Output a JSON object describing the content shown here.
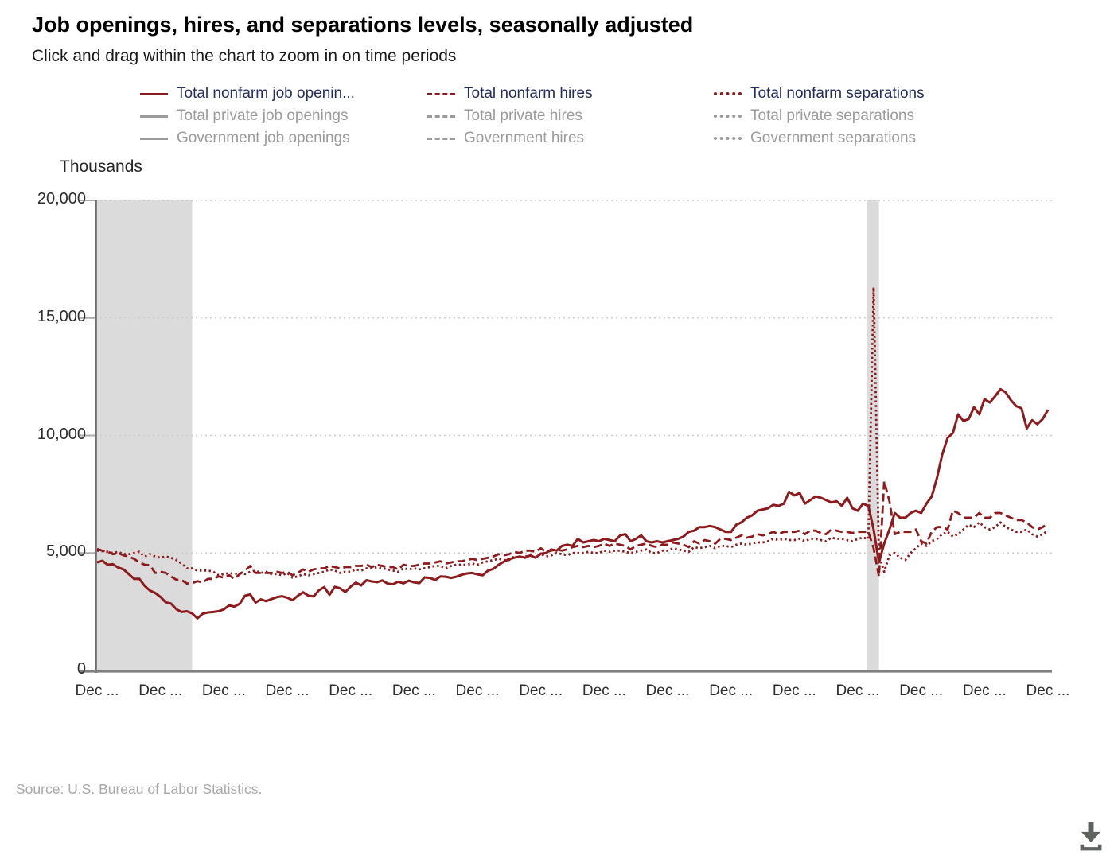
{
  "header": {
    "title": "Job openings, hires, and separations levels, seasonally adjusted",
    "subtitle": "Click and drag within the chart to zoom in on time periods"
  },
  "legend": {
    "items": [
      {
        "label": "Total nonfarm job openin...",
        "style": "solid",
        "active": true
      },
      {
        "label": "Total private job openings",
        "style": "solid",
        "active": false
      },
      {
        "label": "Government job openings",
        "style": "solid",
        "active": false
      },
      {
        "label": "Total nonfarm hires",
        "style": "dashed",
        "active": true
      },
      {
        "label": "Total private hires",
        "style": "dashed",
        "active": false
      },
      {
        "label": "Government hires",
        "style": "dashed",
        "active": false
      },
      {
        "label": "Total nonfarm separations",
        "style": "dotted",
        "active": true
      },
      {
        "label": "Total private separations",
        "style": "dotted",
        "active": false
      },
      {
        "label": "Government separations",
        "style": "dotted",
        "active": false
      }
    ]
  },
  "chart_data": {
    "type": "line",
    "title": "Job openings, hires, and separations levels, seasonally adjusted",
    "y_axis_title": "Thousands",
    "ylim": [
      0,
      20000
    ],
    "grid": "dotted-horizontal",
    "y_ticks": {
      "labels": [
        "0",
        "5,000",
        "10,000",
        "15,000",
        "20,000"
      ],
      "values": [
        0,
        5000,
        10000,
        15000,
        20000
      ]
    },
    "x_tick_labels": [
      "Dec ...",
      "Dec ...",
      "Dec ...",
      "Dec ...",
      "Dec ...",
      "Dec ...",
      "Dec ...",
      "Dec ...",
      "Dec ...",
      "Dec ...",
      "Dec ...",
      "Dec ...",
      "Dec ...",
      "Dec ...",
      "Dec ...",
      "Dec ..."
    ],
    "x_tick_point_indices": [
      0,
      12,
      24,
      36,
      48,
      60,
      72,
      84,
      96,
      108,
      120,
      132,
      144,
      156,
      168,
      180
    ],
    "x_unit": "monthly",
    "recession_bands": [
      {
        "from_index": 0,
        "to_index": 18
      },
      {
        "from_index": 146,
        "to_index": 148
      }
    ],
    "colors": {
      "series": "#8D1A1D",
      "active_label": "#252D62",
      "muted": "#9B9B9B",
      "grid": "#CCCCCC",
      "band": "#DBDBDB",
      "axis": "#7F7F7F"
    },
    "series": [
      {
        "name": "Total nonfarm job openings",
        "style": "solid",
        "values": [
          4600,
          4670,
          4500,
          4520,
          4380,
          4300,
          4100,
          3900,
          3900,
          3600,
          3400,
          3300,
          3130,
          2900,
          2850,
          2610,
          2490,
          2520,
          2430,
          2220,
          2420,
          2470,
          2490,
          2520,
          2600,
          2770,
          2720,
          2840,
          3180,
          3240,
          2890,
          3030,
          2950,
          3040,
          3120,
          3160,
          3100,
          2990,
          3180,
          3330,
          3180,
          3150,
          3410,
          3550,
          3220,
          3560,
          3500,
          3340,
          3570,
          3740,
          3620,
          3840,
          3790,
          3760,
          3830,
          3700,
          3670,
          3780,
          3710,
          3820,
          3750,
          3720,
          3960,
          3940,
          3850,
          4000,
          3990,
          3940,
          3990,
          4070,
          4130,
          4150,
          4090,
          4050,
          4250,
          4320,
          4500,
          4630,
          4740,
          4800,
          4850,
          4800,
          4900,
          4800,
          4970,
          5000,
          5150,
          5100,
          5300,
          5350,
          5300,
          5600,
          5450,
          5500,
          5550,
          5500,
          5600,
          5550,
          5500,
          5750,
          5800,
          5500,
          5600,
          5750,
          5500,
          5450,
          5500,
          5450,
          5500,
          5550,
          5600,
          5700,
          5900,
          5950,
          6100,
          6100,
          6150,
          6100,
          6000,
          5900,
          5900,
          6200,
          6300,
          6500,
          6600,
          6800,
          6850,
          6900,
          7050,
          7000,
          7100,
          7600,
          7450,
          7550,
          7100,
          7250,
          7400,
          7350,
          7250,
          7150,
          7200,
          7000,
          7350,
          6900,
          6800,
          7100,
          7000,
          6000,
          4600,
          5400,
          6000,
          6700,
          6500,
          6500,
          6700,
          6800,
          6700,
          7100,
          7400,
          8200,
          9200,
          9900,
          10100,
          10900,
          10620,
          10700,
          11200,
          10900,
          11550,
          11400,
          11670,
          11970,
          11830,
          11500,
          11250,
          11150,
          10300,
          10650,
          10480,
          10700,
          11090
        ]
      },
      {
        "name": "Total nonfarm hires",
        "style": "dashed",
        "values": [
          5170,
          5100,
          5060,
          4950,
          5000,
          4900,
          4850,
          4750,
          4600,
          4500,
          4480,
          4150,
          4200,
          4150,
          4000,
          3860,
          3850,
          3700,
          3720,
          3800,
          3750,
          3900,
          3900,
          4000,
          3950,
          4050,
          3900,
          4100,
          4250,
          4450,
          4150,
          4150,
          4150,
          4150,
          4200,
          4150,
          4200,
          4050,
          4150,
          4300,
          4200,
          4300,
          4350,
          4350,
          4450,
          4400,
          4350,
          4400,
          4400,
          4450,
          4450,
          4500,
          4400,
          4500,
          4450,
          4400,
          4400,
          4300,
          4500,
          4450,
          4450,
          4500,
          4550,
          4550,
          4600,
          4650,
          4550,
          4600,
          4650,
          4650,
          4700,
          4750,
          4700,
          4750,
          4800,
          4850,
          4950,
          4900,
          4950,
          5050,
          5000,
          5100,
          5100,
          5050,
          5200,
          5050,
          5100,
          5150,
          5100,
          5150,
          5250,
          5300,
          5250,
          5300,
          5250,
          5300,
          5400,
          5300,
          5400,
          5350,
          5300,
          5150,
          5300,
          5350,
          5400,
          5300,
          5250,
          5350,
          5350,
          5450,
          5400,
          5350,
          5250,
          5500,
          5400,
          5550,
          5500,
          5400,
          5600,
          5600,
          5550,
          5650,
          5750,
          5650,
          5700,
          5800,
          5750,
          5800,
          5900,
          5800,
          5900,
          5900,
          5900,
          5950,
          5800,
          5950,
          5950,
          5850,
          5800,
          6000,
          5950,
          5900,
          5900,
          5850,
          5900,
          5900,
          5900,
          5200,
          4000,
          8050,
          7200,
          5800,
          5900,
          5900,
          5900,
          6000,
          5500,
          5400,
          5900,
          6100,
          6100,
          6000,
          6800,
          6700,
          6500,
          6500,
          6500,
          6700,
          6500,
          6500,
          6700,
          6700,
          6600,
          6500,
          6400,
          6400,
          6300,
          6100,
          6000,
          6100,
          6260
        ]
      },
      {
        "name": "Total nonfarm separations",
        "style": "dotted",
        "values": [
          5100,
          5080,
          5050,
          5000,
          5050,
          4950,
          4950,
          5000,
          5050,
          4850,
          4950,
          4850,
          4800,
          4850,
          4800,
          4700,
          4550,
          4350,
          4350,
          4250,
          4250,
          4250,
          4200,
          4050,
          4100,
          4150,
          4100,
          4150,
          4100,
          4200,
          4250,
          4150,
          4200,
          4100,
          4100,
          4050,
          4150,
          3950,
          4000,
          4100,
          4050,
          4100,
          4150,
          4200,
          4300,
          4250,
          4150,
          4200,
          4200,
          4300,
          4250,
          4350,
          4350,
          4400,
          4350,
          4300,
          4250,
          4200,
          4350,
          4300,
          4350,
          4300,
          4350,
          4400,
          4450,
          4450,
          4350,
          4450,
          4500,
          4500,
          4500,
          4550,
          4500,
          4600,
          4650,
          4700,
          4750,
          4700,
          4700,
          4850,
          4800,
          4850,
          4900,
          4800,
          4950,
          4850,
          4900,
          5000,
          4950,
          4900,
          5000,
          5000,
          5000,
          5050,
          5000,
          5000,
          5100,
          5050,
          5100,
          5100,
          5050,
          5000,
          5050,
          5100,
          5150,
          5000,
          5000,
          5100,
          5100,
          5200,
          5150,
          5100,
          5050,
          5250,
          5200,
          5250,
          5300,
          5200,
          5300,
          5300,
          5250,
          5350,
          5400,
          5350,
          5400,
          5450,
          5450,
          5500,
          5600,
          5550,
          5600,
          5550,
          5550,
          5600,
          5500,
          5600,
          5600,
          5550,
          5500,
          5650,
          5600,
          5600,
          5550,
          5500,
          5600,
          5650,
          5600,
          16300,
          4900,
          4200,
          4900,
          5000,
          4800,
          4700,
          5000,
          5200,
          5400,
          5300,
          5500,
          5600,
          5800,
          5900,
          5700,
          5800,
          6000,
          6200,
          6100,
          6300,
          6100,
          6000,
          6100,
          6300,
          6100,
          6000,
          5900,
          5900,
          6000,
          5800,
          5700,
          5800,
          5960
        ]
      }
    ]
  },
  "footer": {
    "source": "Source: U.S. Bureau of Labor Statistics."
  },
  "icons": {
    "download": "download-icon"
  }
}
